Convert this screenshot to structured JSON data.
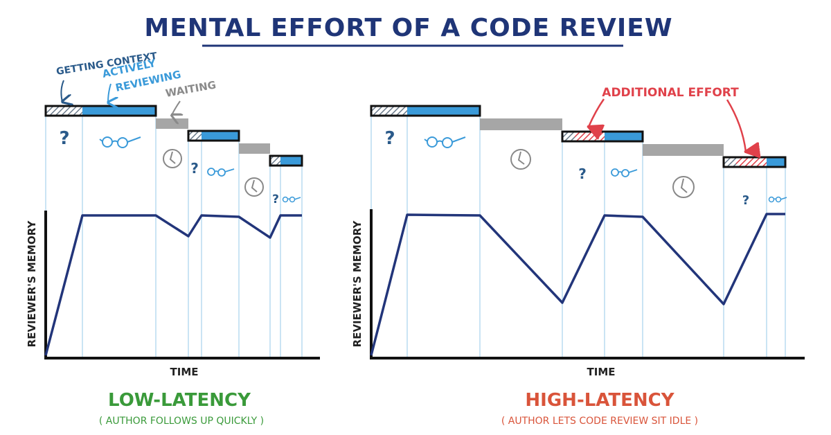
{
  "title": "MENTAL EFFORT OF A CODE REVIEW",
  "legend": {
    "getting_context": "GETTING CONTEXT",
    "actively_line1": "ACTIVELY",
    "actively_line2": "REVIEWING",
    "waiting": "WAITING",
    "additional_effort": "ADDITIONAL EFFORT"
  },
  "panels": [
    {
      "ylabel": "REVIEWER'S MEMORY",
      "xlabel": "TIME",
      "footer_title": "LOW-LATENCY",
      "footer_subtitle": "( AUTHOR FOLLOWS UP QUICKLY )"
    },
    {
      "ylabel": "REVIEWER'S MEMORY",
      "xlabel": "TIME",
      "footer_title": "HIGH-LATENCY",
      "footer_subtitle": "( AUTHOR LETS CODE REVIEW SIT IDLE )"
    }
  ],
  "question_mark": "?",
  "colors": {
    "title": "#1f3577",
    "active": "#3a9ad9",
    "waiting": "#a6a6a6",
    "additional": "#e0414a",
    "curve": "#22357a",
    "low_latency": "#3a9a3a",
    "high_latency": "#d9543a"
  }
}
